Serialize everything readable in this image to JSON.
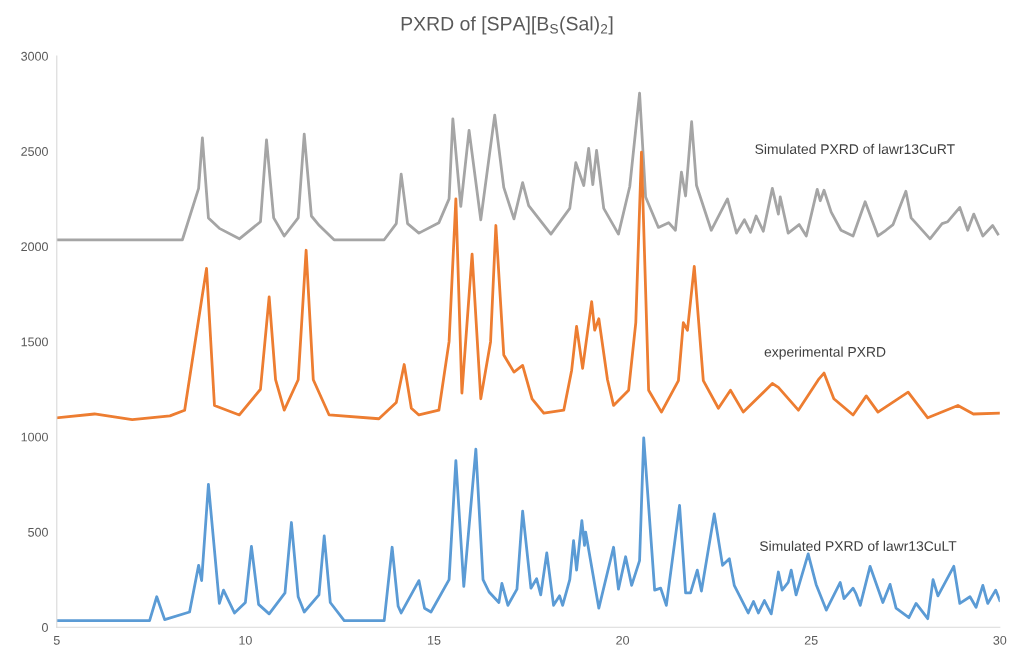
{
  "chart_data": {
    "type": "line",
    "title": "PXRD of [SPA][B$_{S}$(Sal)$_{2}$]",
    "xlim": [
      5,
      30
    ],
    "xticks": [
      5,
      10,
      15,
      20,
      25,
      30
    ],
    "ylim": [
      0,
      3000
    ],
    "yticks": [
      0,
      500,
      1000,
      1500,
      2000,
      2500,
      3000
    ],
    "grid": false,
    "legend": false,
    "marker": "none",
    "line_style": "solid",
    "series": [
      {
        "name": "Simulated PXRD of lawr13CuRT",
        "color": "#a5a5a5",
        "x": [
          5,
          8.33,
          8.76,
          8.86,
          9.02,
          9.31,
          9.84,
          10.4,
          10.56,
          10.75,
          11.03,
          11.4,
          11.56,
          11.75,
          11.96,
          12.35,
          13.68,
          14.0,
          14.13,
          14.3,
          14.6,
          15.13,
          15.4,
          15.5,
          15.71,
          15.93,
          16.24,
          16.61,
          16.85,
          17.12,
          17.35,
          17.51,
          18.1,
          18.6,
          18.76,
          18.97,
          19.1,
          19.21,
          19.31,
          19.5,
          19.89,
          20.19,
          20.45,
          20.61,
          20.95,
          21.22,
          21.4,
          21.56,
          21.67,
          21.83,
          21.96,
          22.35,
          22.78,
          23.02,
          23.23,
          23.39,
          23.54,
          23.73,
          23.97,
          24.13,
          24.18,
          24.39,
          24.68,
          24.87,
          25.16,
          25.24,
          25.34,
          25.53,
          25.79,
          26.11,
          26.43,
          26.77,
          26.98,
          27.17,
          27.51,
          27.65,
          28.15,
          28.47,
          28.62,
          28.94,
          29.15,
          29.31,
          29.55,
          29.81,
          29.95
        ],
        "values": [
          2035,
          2035,
          2305,
          2570,
          2150,
          2095,
          2040,
          2130,
          2560,
          2150,
          2055,
          2150,
          2590,
          2160,
          2110,
          2035,
          2035,
          2120,
          2380,
          2120,
          2070,
          2125,
          2250,
          2670,
          2210,
          2610,
          2140,
          2690,
          2310,
          2145,
          2335,
          2215,
          2065,
          2200,
          2440,
          2320,
          2515,
          2325,
          2505,
          2200,
          2065,
          2315,
          2805,
          2260,
          2100,
          2125,
          2085,
          2390,
          2265,
          2655,
          2320,
          2085,
          2250,
          2070,
          2140,
          2075,
          2160,
          2080,
          2305,
          2170,
          2260,
          2070,
          2115,
          2055,
          2300,
          2240,
          2295,
          2180,
          2085,
          2055,
          2235,
          2055,
          2085,
          2115,
          2290,
          2150,
          2040,
          2120,
          2130,
          2205,
          2085,
          2170,
          2055,
          2110,
          2065
        ]
      },
      {
        "name": "experimental PXRD",
        "color": "#ed7d31",
        "x": [
          5,
          6,
          7,
          8,
          8.39,
          8.84,
          8.97,
          9.18,
          9.84,
          10.4,
          10.63,
          10.8,
          11.03,
          11.4,
          11.61,
          11.8,
          12.22,
          13.54,
          14.0,
          14.21,
          14.4,
          14.6,
          15.13,
          15.4,
          15.58,
          15.74,
          16.01,
          16.24,
          16.5,
          16.64,
          16.85,
          17.12,
          17.35,
          17.6,
          17.91,
          18.44,
          18.65,
          18.78,
          18.94,
          19.18,
          19.26,
          19.37,
          19.6,
          19.76,
          20.16,
          20.35,
          20.5,
          20.69,
          21.03,
          21.48,
          21.61,
          21.72,
          21.9,
          22.14,
          22.54,
          22.86,
          23.2,
          23.97,
          24.13,
          24.66,
          25.19,
          25.34,
          25.6,
          26.11,
          26.46,
          26.77,
          27.57,
          28.09,
          28.89,
          29.3,
          30
        ],
        "values": [
          1100,
          1120,
          1090,
          1110,
          1140,
          1720,
          1885,
          1165,
          1115,
          1250,
          1735,
          1300,
          1140,
          1300,
          1980,
          1300,
          1115,
          1095,
          1180,
          1380,
          1150,
          1115,
          1140,
          1500,
          2250,
          1230,
          1960,
          1200,
          1500,
          2110,
          1430,
          1340,
          1375,
          1200,
          1125,
          1140,
          1350,
          1580,
          1360,
          1710,
          1560,
          1620,
          1300,
          1165,
          1245,
          1600,
          2495,
          1245,
          1130,
          1295,
          1600,
          1560,
          1895,
          1295,
          1150,
          1245,
          1130,
          1280,
          1260,
          1140,
          1300,
          1335,
          1200,
          1115,
          1215,
          1130,
          1235,
          1100,
          1165,
          1120,
          1125
        ]
      },
      {
        "name": "Simulated PXRD of lawr13CuLT",
        "color": "#5b9bd5",
        "x": [
          5,
          7.46,
          7.65,
          7.86,
          8.52,
          8.76,
          8.84,
          9.02,
          9.31,
          9.42,
          9.71,
          10.0,
          10.16,
          10.35,
          10.63,
          11.05,
          11.22,
          11.4,
          11.56,
          11.95,
          12.09,
          12.25,
          12.62,
          13.68,
          13.89,
          14.05,
          14.13,
          14.6,
          14.75,
          14.92,
          15.4,
          15.58,
          15.79,
          16.11,
          16.3,
          16.46,
          16.72,
          16.8,
          16.96,
          17.2,
          17.35,
          17.57,
          17.72,
          17.83,
          17.99,
          18.17,
          18.33,
          18.41,
          18.6,
          18.7,
          18.78,
          18.92,
          18.99,
          19.02,
          19.37,
          19.76,
          19.89,
          20.08,
          20.24,
          20.45,
          20.56,
          20.85,
          21.01,
          21.16,
          21.51,
          21.67,
          21.8,
          21.98,
          22.09,
          22.43,
          22.65,
          22.83,
          22.96,
          23.33,
          23.47,
          23.6,
          23.76,
          23.94,
          24.13,
          24.23,
          24.39,
          24.47,
          24.6,
          24.92,
          25.13,
          25.4,
          25.77,
          25.87,
          26.11,
          26.19,
          26.3,
          26.56,
          26.9,
          27.09,
          27.25,
          27.59,
          27.78,
          28.09,
          28.23,
          28.36,
          28.78,
          28.94,
          29.21,
          29.37,
          29.55,
          29.68,
          29.89,
          30
        ],
        "values": [
          35,
          35,
          160,
          40,
          80,
          325,
          245,
          750,
          125,
          195,
          75,
          130,
          425,
          120,
          70,
          180,
          550,
          160,
          80,
          170,
          480,
          130,
          35,
          35,
          420,
          110,
          75,
          245,
          100,
          80,
          250,
          875,
          215,
          935,
          250,
          185,
          130,
          230,
          115,
          200,
          610,
          205,
          255,
          170,
          390,
          115,
          165,
          115,
          250,
          455,
          300,
          560,
          430,
          500,
          100,
          420,
          200,
          370,
          220,
          350,
          995,
          195,
          205,
          115,
          640,
          180,
          180,
          300,
          190,
          595,
          325,
          360,
          220,
          75,
          135,
          75,
          140,
          70,
          290,
          195,
          235,
          300,
          170,
          385,
          225,
          90,
          235,
          150,
          205,
          175,
          115,
          320,
          130,
          225,
          100,
          50,
          125,
          45,
          250,
          165,
          320,
          125,
          160,
          105,
          220,
          125,
          195,
          140
        ]
      }
    ]
  }
}
